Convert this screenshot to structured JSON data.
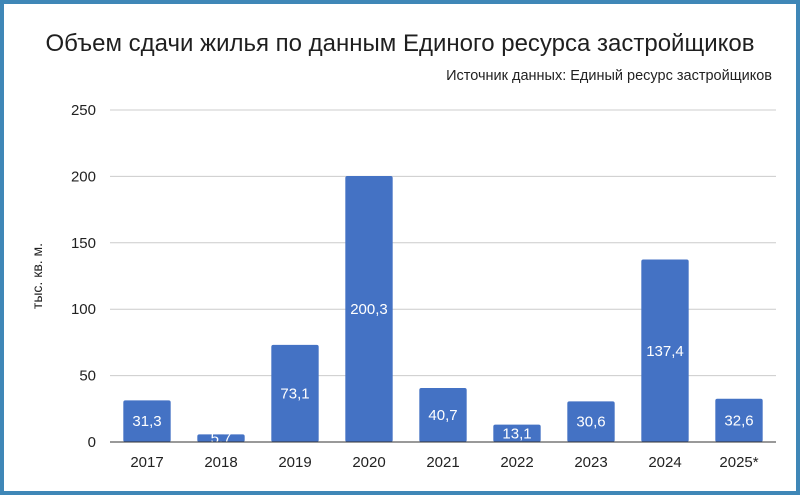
{
  "chart_data": {
    "type": "bar",
    "title": "Объем сдачи жилья по данным Единого ресурса застройщиков",
    "subtitle": "Источник данных: Единый ресурс застройщиков",
    "ylabel": "тыс. кв. м.",
    "xlabel": "",
    "categories": [
      "2017",
      "2018",
      "2019",
      "2020",
      "2021",
      "2022",
      "2023",
      "2024",
      "2025*"
    ],
    "values": [
      31.3,
      5.7,
      73.1,
      200.3,
      40.7,
      13.1,
      30.6,
      137.4,
      32.6
    ],
    "data_labels": [
      "31,3",
      "5,7",
      "73,1",
      "200,3",
      "40,7",
      "13,1",
      "30,6",
      "137,4",
      "32,6"
    ],
    "ylim": [
      0,
      250
    ],
    "yticks": [
      0,
      50,
      100,
      150,
      200,
      250
    ],
    "grid": true,
    "legend": "none",
    "colors": {
      "bar": "#4472c4",
      "grid": "#cccccc",
      "axis": "#333333",
      "frame": "#3f87b7"
    }
  }
}
